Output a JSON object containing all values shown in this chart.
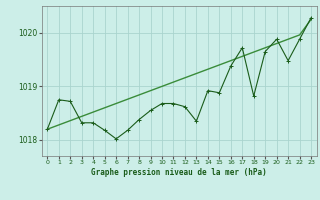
{
  "title": "Graphe pression niveau de la mer (hPa)",
  "bg_color": "#cceee8",
  "grid_color": "#aad4ce",
  "line_color_dark": "#1a5c1a",
  "line_color_light": "#3a8c3a",
  "x_ticks": [
    0,
    1,
    2,
    3,
    4,
    5,
    6,
    7,
    8,
    9,
    10,
    11,
    12,
    13,
    14,
    15,
    16,
    17,
    18,
    19,
    20,
    21,
    22,
    23
  ],
  "ylim": [
    1017.7,
    1020.5
  ],
  "yticks": [
    1018,
    1019,
    1020
  ],
  "series_smooth": [
    1018.2,
    1018.28,
    1018.36,
    1018.44,
    1018.52,
    1018.6,
    1018.68,
    1018.76,
    1018.84,
    1018.92,
    1019.0,
    1019.08,
    1019.16,
    1019.24,
    1019.32,
    1019.4,
    1019.48,
    1019.56,
    1019.64,
    1019.72,
    1019.8,
    1019.88,
    1019.96,
    1020.25
  ],
  "series_detail": [
    1018.2,
    1018.75,
    1018.72,
    1018.32,
    1018.32,
    1018.18,
    1018.02,
    1018.18,
    1018.38,
    1018.55,
    1018.68,
    1018.68,
    1018.62,
    1018.35,
    1018.92,
    1018.88,
    1019.38,
    1019.72,
    1018.82,
    1019.65,
    1019.88,
    1019.48,
    1019.88,
    1020.28
  ]
}
